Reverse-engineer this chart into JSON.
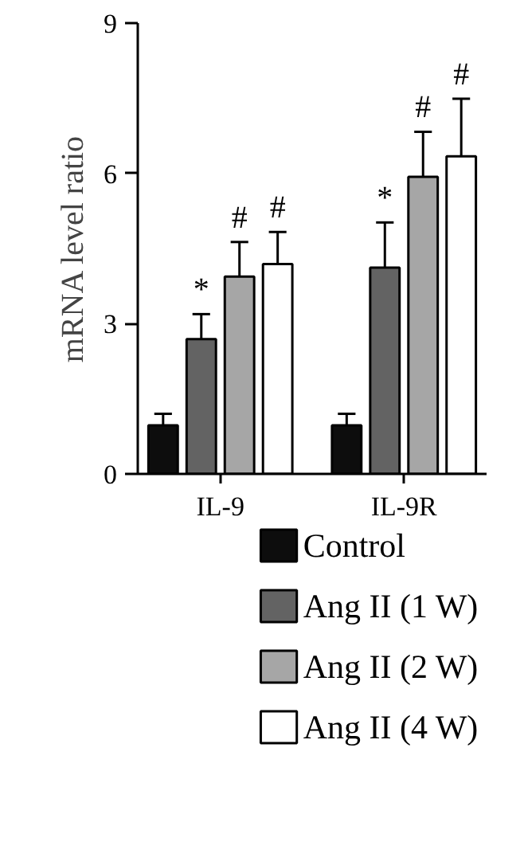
{
  "chart_data": {
    "type": "bar",
    "ylabel": "mRNA level ratio",
    "categories": [
      "IL-9",
      "IL-9R"
    ],
    "series": [
      {
        "name": "Control",
        "color": "#0d0d0d",
        "values": [
          0.97,
          0.97
        ],
        "errors": [
          [
            0.97,
            1.2
          ],
          [
            0.97,
            1.2
          ]
        ],
        "value_labels": [
          null,
          null
        ]
      },
      {
        "name": "Ang II (1 W)",
        "color": "#636363",
        "values": [
          2.69,
          4.12
        ],
        "errors": [
          [
            2.69,
            3.19
          ],
          [
            4.12,
            5.02
          ]
        ],
        "value_labels": [
          "*",
          "*"
        ]
      },
      {
        "name": "Ang II (2 W)",
        "color": "#a6a6a6",
        "values": [
          3.94,
          5.93
        ],
        "errors": [
          [
            3.94,
            4.63
          ],
          [
            5.93,
            6.83
          ]
        ],
        "value_labels": [
          "#",
          "#"
        ]
      },
      {
        "name": "Ang II (4 W)",
        "color": "#ffffff",
        "values": [
          4.19,
          6.34
        ],
        "errors": [
          [
            4.19,
            4.83
          ],
          [
            6.34,
            7.49
          ]
        ],
        "value_labels": [
          "#",
          "#"
        ]
      }
    ],
    "ylim": [
      0,
      9
    ],
    "yticks": [
      0,
      3,
      6,
      9
    ],
    "grid": false,
    "legend": "bottom"
  }
}
